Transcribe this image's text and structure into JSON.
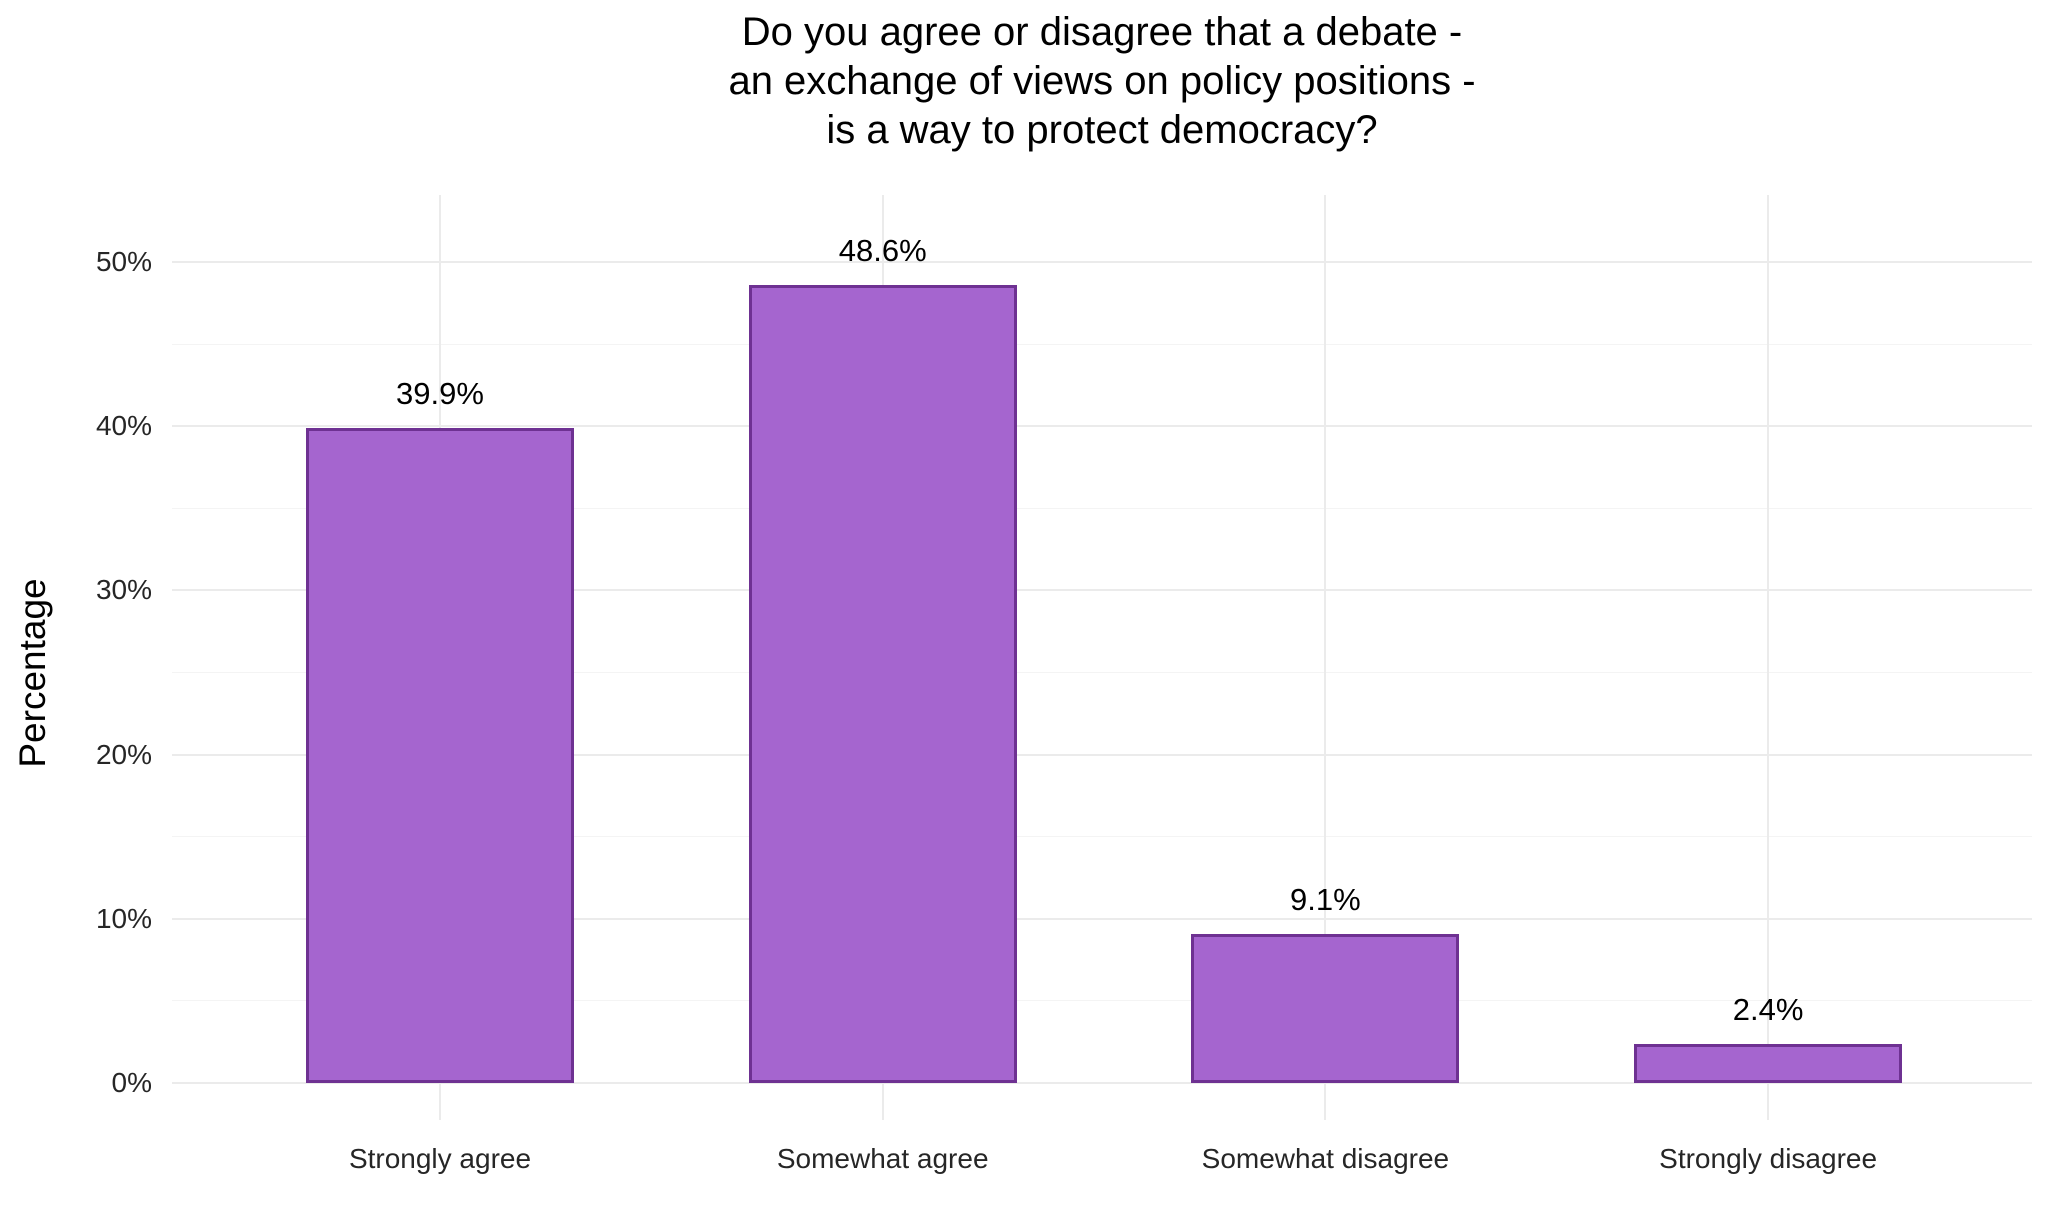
{
  "chart_data": {
    "type": "bar",
    "title_lines": [
      "Do you agree or disagree that a debate -",
      "an exchange of views on policy positions -",
      "is a way to protect democracy?"
    ],
    "categories": [
      "Strongly agree",
      "Somewhat agree",
      "Somewhat disagree",
      "Strongly disagree"
    ],
    "values": [
      39.9,
      48.6,
      9.1,
      2.4
    ],
    "value_labels": [
      "39.9%",
      "48.6%",
      "9.1%",
      "2.4%"
    ],
    "xlabel": "",
    "ylabel": "Percentage",
    "ylim": [
      0,
      50
    ],
    "y_ticks": [
      0,
      10,
      20,
      30,
      40,
      50
    ],
    "y_tick_labels": [
      "0%",
      "10%",
      "20%",
      "30%",
      "40%",
      "50%"
    ],
    "y_minor_ticks": [
      5,
      15,
      25,
      35,
      45
    ],
    "grid": "on",
    "legend": "none",
    "colors": {
      "bar_fill": "#A565CF",
      "bar_stroke": "#6E3192",
      "grid_major": "#EBEBEB",
      "grid_minor": "#F4F4F4",
      "text": "#000000",
      "background": "#FFFFFF"
    }
  }
}
